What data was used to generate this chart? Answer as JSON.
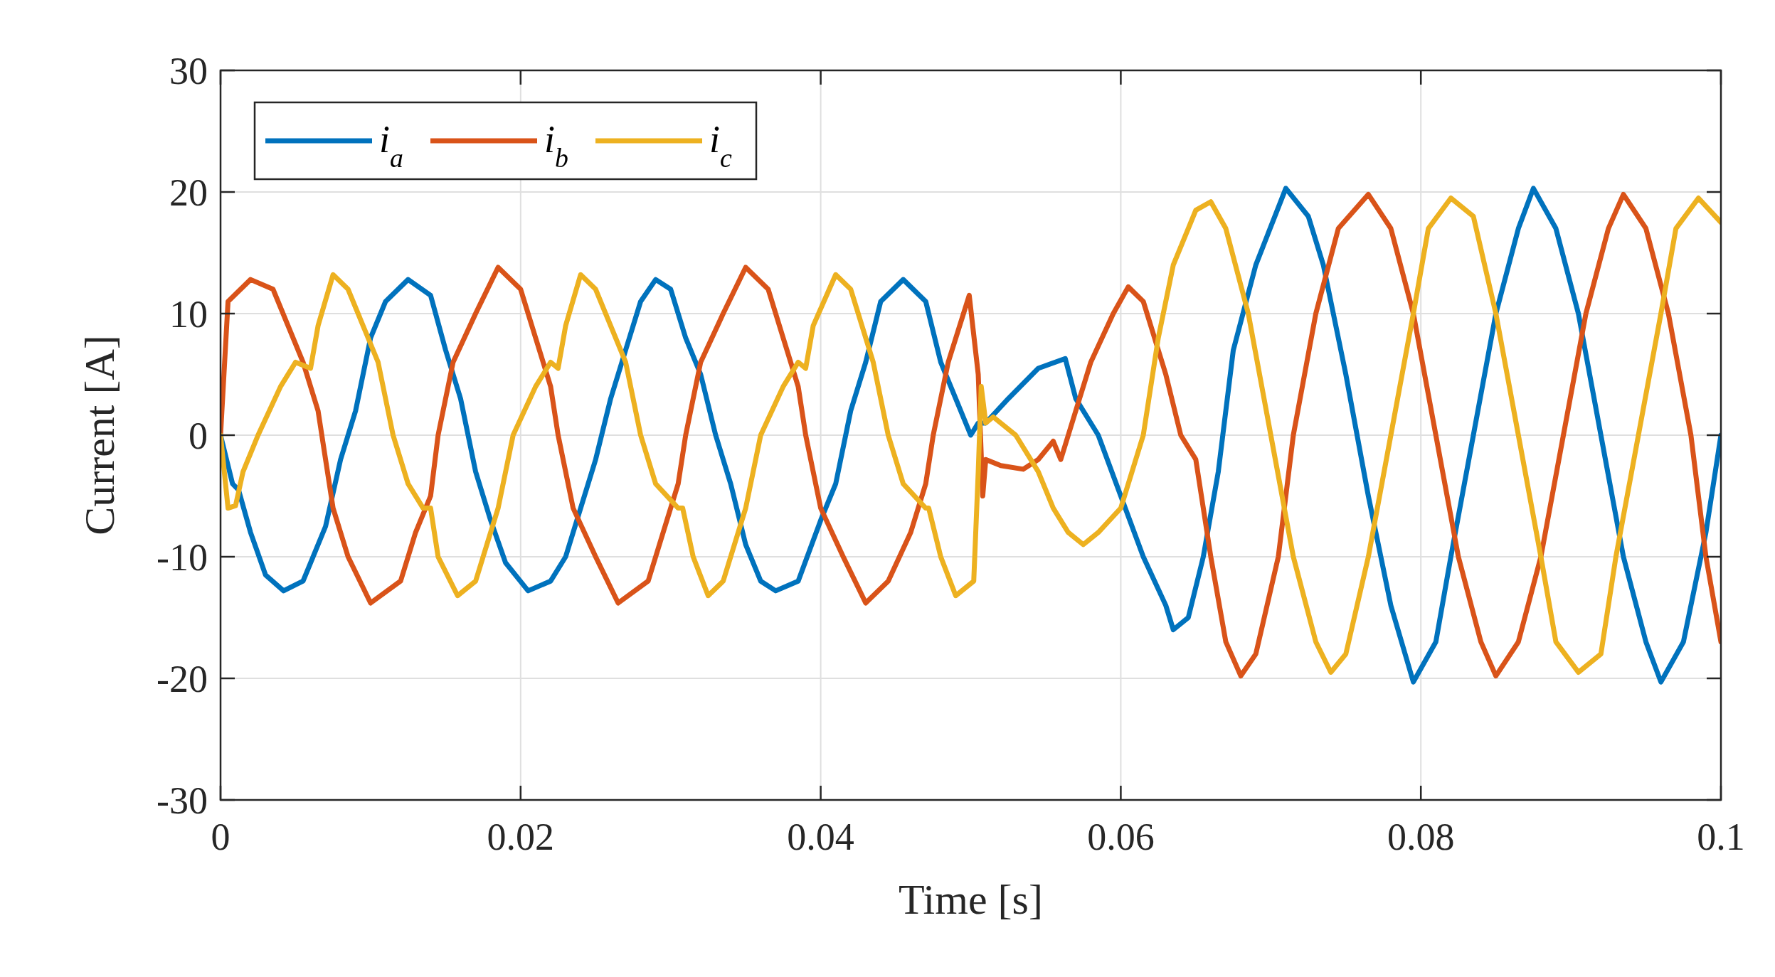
{
  "chart_data": {
    "type": "line",
    "xlabel": "Time [s]",
    "ylabel": "Current [A]",
    "xlim": [
      0,
      0.1
    ],
    "ylim": [
      -30,
      30
    ],
    "xticks": [
      0,
      0.02,
      0.04,
      0.06,
      0.08,
      0.1
    ],
    "yticks": [
      -30,
      -20,
      -10,
      0,
      10,
      20,
      30
    ],
    "grid": true,
    "legend": "top left",
    "line_style": "solid",
    "marker": "none",
    "series": [
      {
        "name": "i$_{a}$",
        "color": "#0072bd",
        "x": [
          0,
          0.0008,
          0.0012,
          0.002,
          0.003,
          0.0042,
          0.0055,
          0.006,
          0.007,
          0.008,
          0.009,
          0.01,
          0.011,
          0.0125,
          0.014,
          0.015,
          0.016,
          0.017,
          0.018,
          0.019,
          0.0205,
          0.022,
          0.023,
          0.024,
          0.025,
          0.026,
          0.027,
          0.028,
          0.029,
          0.03,
          0.031,
          0.032,
          0.033,
          0.034,
          0.035,
          0.036,
          0.037,
          0.0385,
          0.04,
          0.041,
          0.042,
          0.043,
          0.044,
          0.0455,
          0.047,
          0.048,
          0.049,
          0.05,
          0.0505,
          0.051,
          0.0525,
          0.0545,
          0.0563,
          0.057,
          0.0585,
          0.06,
          0.0615,
          0.063,
          0.0635,
          0.0645,
          0.0655,
          0.0665,
          0.0675,
          0.069,
          0.071,
          0.0725,
          0.0735,
          0.075,
          0.0765,
          0.078,
          0.0795,
          0.081,
          0.082,
          0.0835,
          0.085,
          0.0865,
          0.0875,
          0.089,
          0.0905,
          0.092,
          0.0935,
          0.095,
          0.096,
          0.0975,
          0.099,
          0.1
        ],
        "values": [
          0,
          -4,
          -4.5,
          -8,
          -11.5,
          -12.8,
          -12,
          -10.5,
          -7.5,
          -2,
          2,
          8,
          11,
          12.8,
          11.5,
          7,
          3,
          -3,
          -7,
          -10.5,
          -12.8,
          -12,
          -10,
          -6,
          -2,
          3,
          7,
          11,
          12.8,
          12,
          8,
          5,
          0,
          -4,
          -9,
          -12,
          -12.8,
          -12,
          -7,
          -4,
          2,
          6,
          11,
          12.8,
          11,
          6,
          3,
          0,
          1,
          1,
          3,
          5.5,
          6.3,
          3,
          0,
          -5,
          -10,
          -14,
          -16,
          -15,
          -10,
          -3,
          7,
          14,
          20.3,
          18,
          14,
          5,
          -5,
          -14,
          -20.3,
          -17,
          -10,
          0,
          10,
          17,
          20.3,
          17,
          10,
          0,
          -10,
          -17,
          -20.3,
          -17,
          -8,
          0
        ]
      },
      {
        "name": "i$_{b}$",
        "color": "#d95319",
        "x": [
          0,
          0.0005,
          0.002,
          0.0035,
          0.0045,
          0.0055,
          0.0065,
          0.0075,
          0.0085,
          0.01,
          0.012,
          0.013,
          0.014,
          0.0145,
          0.0155,
          0.017,
          0.0185,
          0.02,
          0.021,
          0.022,
          0.0225,
          0.0235,
          0.025,
          0.0265,
          0.0285,
          0.0295,
          0.0305,
          0.031,
          0.032,
          0.0335,
          0.035,
          0.0365,
          0.0375,
          0.0385,
          0.039,
          0.04,
          0.0415,
          0.043,
          0.0445,
          0.046,
          0.047,
          0.0475,
          0.0485,
          0.0499,
          0.0505,
          0.0508,
          0.051,
          0.052,
          0.0535,
          0.0545,
          0.0555,
          0.056,
          0.057,
          0.058,
          0.0595,
          0.0605,
          0.0615,
          0.063,
          0.064,
          0.065,
          0.066,
          0.067,
          0.068,
          0.069,
          0.0705,
          0.0715,
          0.073,
          0.0745,
          0.0765,
          0.078,
          0.0795,
          0.081,
          0.0825,
          0.084,
          0.085,
          0.0865,
          0.088,
          0.0895,
          0.091,
          0.0925,
          0.0935,
          0.095,
          0.0965,
          0.098,
          0.099,
          0.1
        ],
        "values": [
          0,
          11,
          12.8,
          12,
          9,
          6,
          2,
          -6,
          -10,
          -13.8,
          -12,
          -8,
          -5,
          0,
          6,
          10,
          13.8,
          12,
          8,
          4,
          0,
          -6,
          -10,
          -13.8,
          -12,
          -8,
          -4,
          0,
          6,
          10,
          13.8,
          12,
          8,
          4,
          0,
          -6,
          -10,
          -13.8,
          -12,
          -8,
          -4,
          0,
          6,
          11.5,
          5,
          -5,
          -2,
          -2.5,
          -2.8,
          -2,
          -0.5,
          -2,
          2,
          6,
          10,
          12.2,
          11,
          5,
          0,
          -2,
          -10,
          -17,
          -19.8,
          -18,
          -10,
          0,
          10,
          17,
          19.8,
          17,
          10,
          0,
          -10,
          -17,
          -19.8,
          -17,
          -10,
          0,
          10,
          17,
          19.8,
          17,
          10,
          0,
          -10,
          -17
        ]
      },
      {
        "name": "i$_{c}$",
        "color": "#edb120",
        "x": [
          0,
          0.0005,
          0.001,
          0.0015,
          0.0025,
          0.004,
          0.005,
          0.006,
          0.0065,
          0.0075,
          0.0085,
          0.0105,
          0.0115,
          0.0125,
          0.0135,
          0.014,
          0.0145,
          0.0158,
          0.017,
          0.0185,
          0.0195,
          0.021,
          0.022,
          0.0225,
          0.023,
          0.024,
          0.025,
          0.027,
          0.028,
          0.029,
          0.0305,
          0.0308,
          0.0315,
          0.0325,
          0.0335,
          0.035,
          0.036,
          0.0375,
          0.0385,
          0.039,
          0.0395,
          0.041,
          0.042,
          0.0435,
          0.0445,
          0.0455,
          0.047,
          0.0472,
          0.048,
          0.049,
          0.0502,
          0.0505,
          0.0507,
          0.051,
          0.0515,
          0.053,
          0.0545,
          0.0555,
          0.0565,
          0.0575,
          0.0585,
          0.06,
          0.0615,
          0.0625,
          0.0635,
          0.0645,
          0.065,
          0.066,
          0.067,
          0.0685,
          0.07,
          0.0715,
          0.073,
          0.074,
          0.075,
          0.0765,
          0.078,
          0.0795,
          0.0805,
          0.082,
          0.0835,
          0.085,
          0.0865,
          0.088,
          0.089,
          0.0905,
          0.092,
          0.093,
          0.0945,
          0.096,
          0.097,
          0.0985,
          0.1
        ],
        "values": [
          0,
          -6,
          -5.8,
          -3,
          0,
          4,
          6,
          5.5,
          9,
          13.2,
          12,
          6,
          0,
          -4,
          -6,
          -6,
          -10,
          -13.2,
          -12,
          -6,
          0,
          4,
          6,
          5.5,
          9,
          13.2,
          12,
          6,
          0,
          -4,
          -6,
          -6,
          -10,
          -13.2,
          -12,
          -6,
          0,
          4,
          6,
          5.5,
          9,
          13.2,
          12,
          6,
          0,
          -4,
          -6,
          -6,
          -10,
          -13.2,
          -12,
          -3,
          4,
          1,
          1.5,
          0,
          -3,
          -6,
          -8,
          -9,
          -8,
          -6,
          0,
          8,
          14,
          17,
          18.5,
          19.2,
          17,
          10,
          0,
          -10,
          -17,
          -19.5,
          -18,
          -10,
          0,
          10,
          17,
          19.5,
          18,
          10,
          0,
          -10,
          -17,
          -19.5,
          -18,
          -10,
          0,
          10,
          17,
          19.5,
          17.5
        ]
      }
    ]
  }
}
